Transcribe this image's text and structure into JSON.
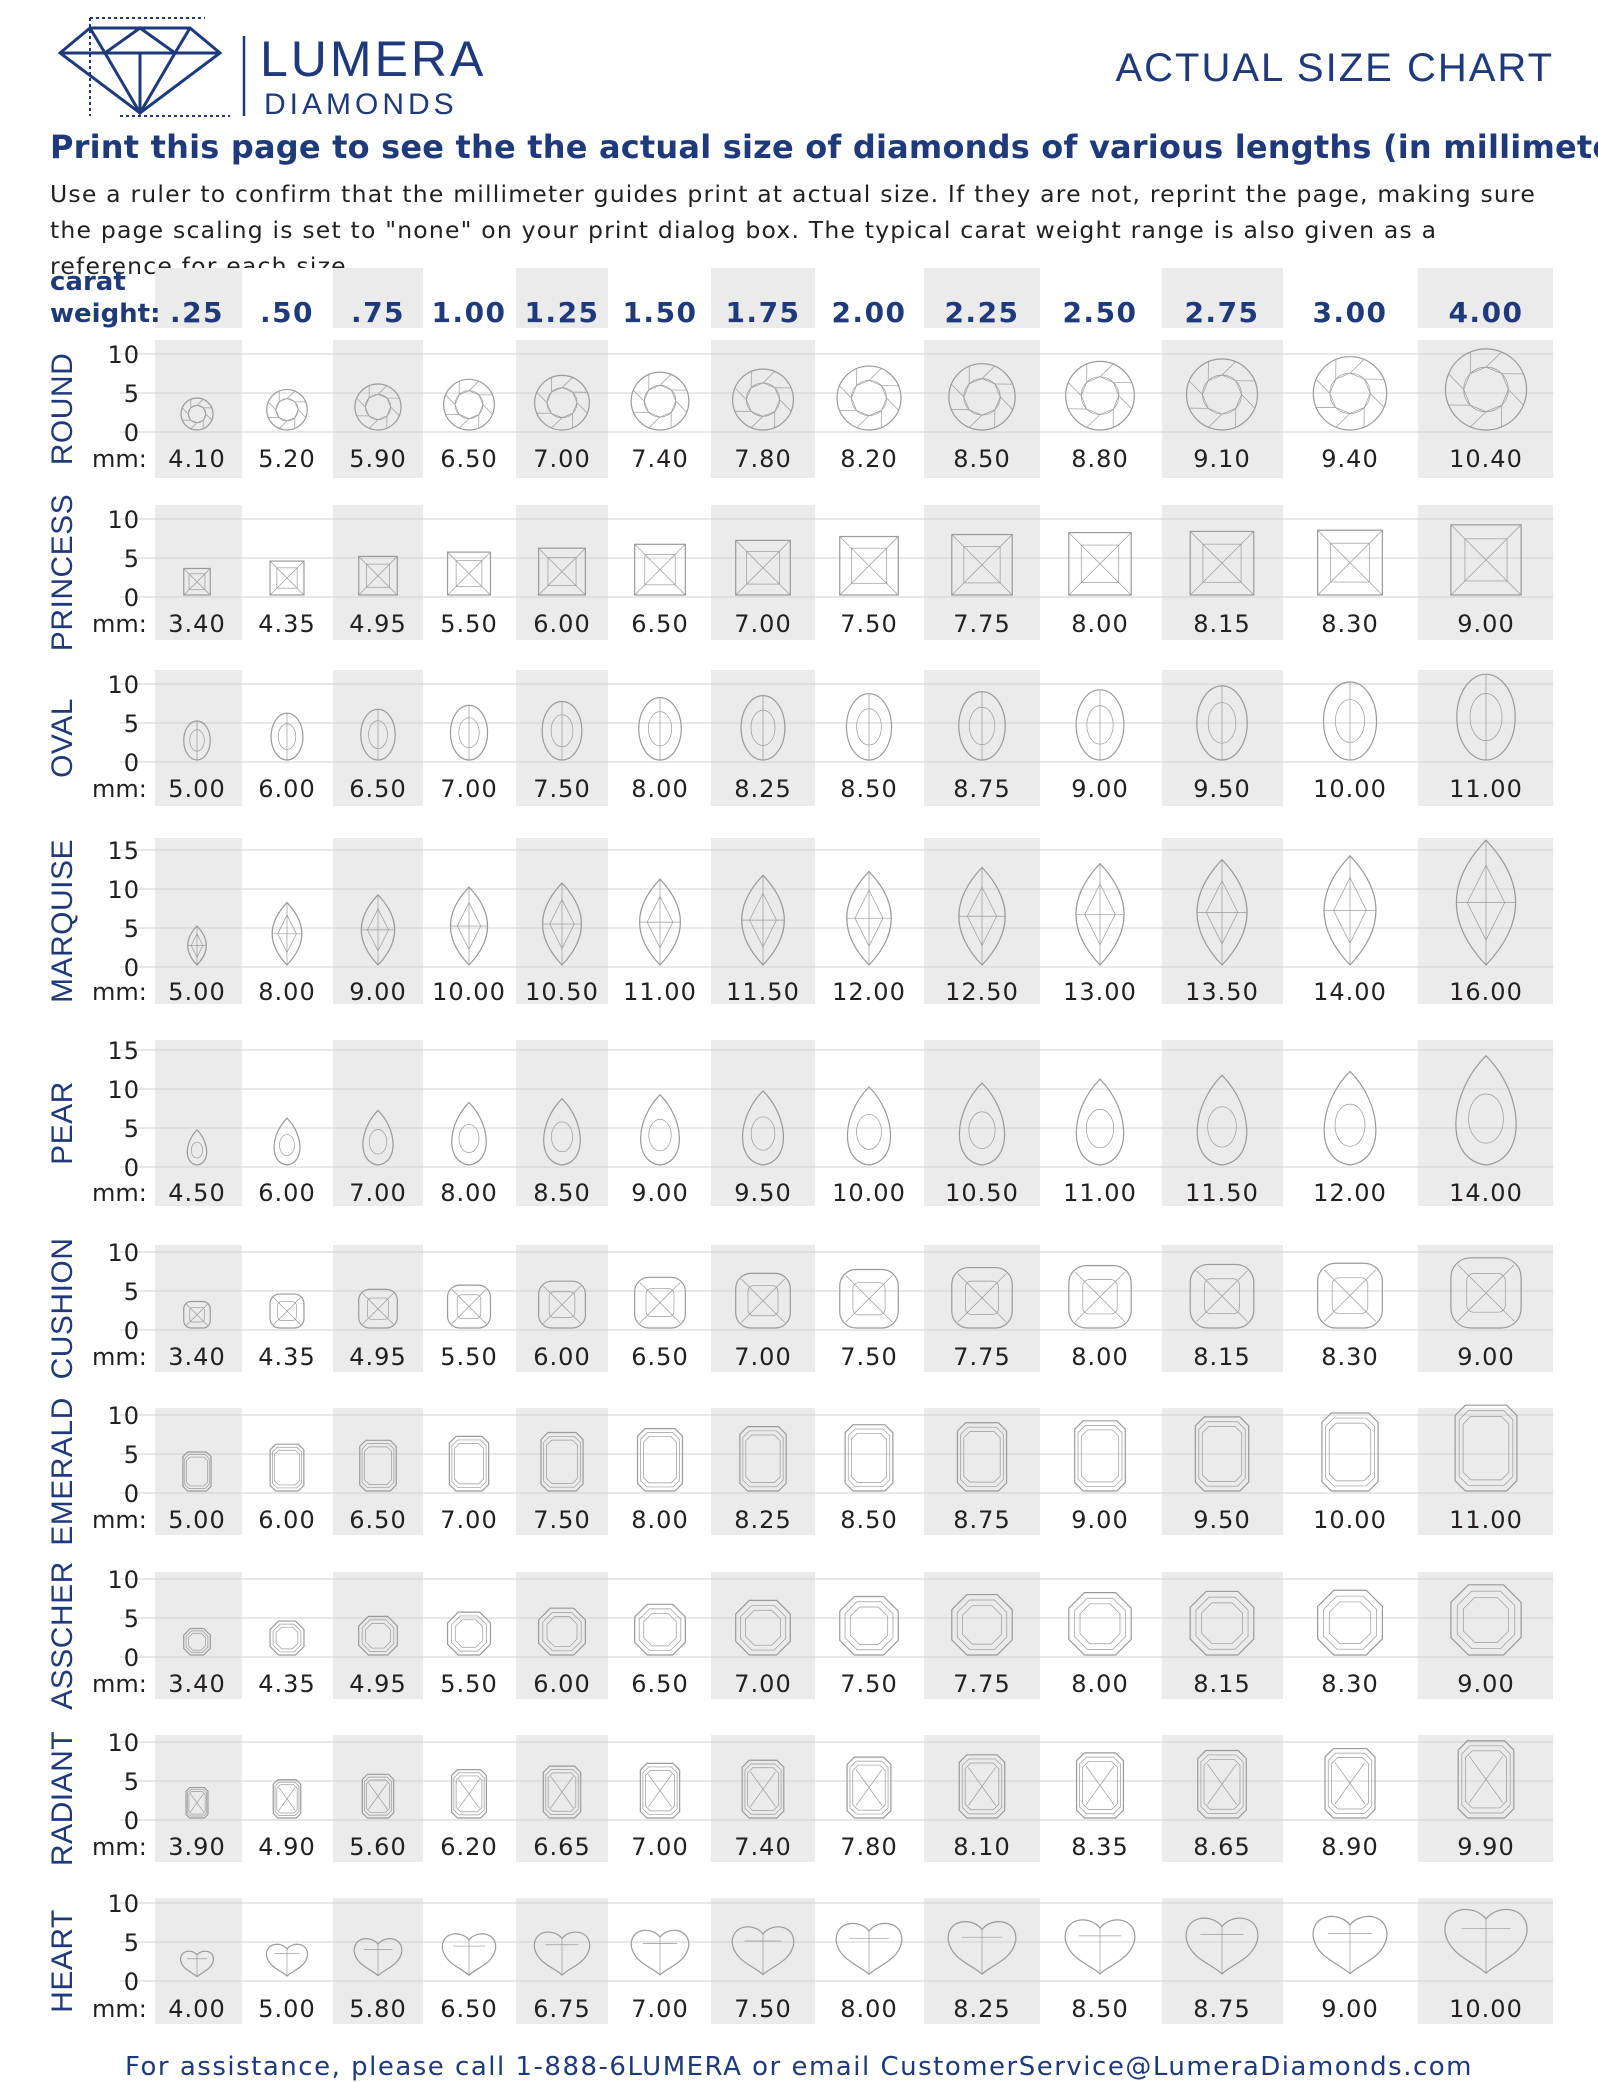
{
  "brand": {
    "name": "LUMERA",
    "sub": "DIAMONDS"
  },
  "chart_title": "ACTUAL SIZE CHART",
  "headline": "Print this page to see the the actual size of diamonds of various lengths (in millimeters).",
  "instructions": "Use a ruler to confirm that the millimeter guides print at actual size.  If they are not, reprint the page, making sure the page scaling is set to \"none\" on your print dialog box.  The typical carat weight range is also given as a reference for each size.",
  "footer": "For assistance, please call 1-888-6LUMERA or email CustomerService@LumeraDiamonds.com",
  "colors": {
    "brand_blue": "#1e3a7b",
    "band_gray": "#ebebeb",
    "grid_line": "#d0d0d0",
    "outline": "#9a9a9a"
  },
  "chart_data": {
    "type": "table",
    "carat_label_1": "carat",
    "carat_label_2": "weight:",
    "mm_label": "mm:",
    "carat_weights": [
      ".25",
      ".50",
      ".75",
      "1.00",
      "1.25",
      "1.50",
      "1.75",
      "2.00",
      "2.25",
      "2.50",
      "2.75",
      "3.00",
      "4.00"
    ],
    "shapes": [
      {
        "name": "ROUND",
        "scale": [
          "10",
          "5",
          "0"
        ],
        "mm": [
          "4.10",
          "5.20",
          "5.90",
          "6.50",
          "7.00",
          "7.40",
          "7.80",
          "8.20",
          "8.50",
          "8.80",
          "9.10",
          "9.40",
          "10.40"
        ]
      },
      {
        "name": "PRINCESS",
        "scale": [
          "10",
          "5",
          "0"
        ],
        "mm": [
          "3.40",
          "4.35",
          "4.95",
          "5.50",
          "6.00",
          "6.50",
          "7.00",
          "7.50",
          "7.75",
          "8.00",
          "8.15",
          "8.30",
          "9.00"
        ]
      },
      {
        "name": "OVAL",
        "scale": [
          "10",
          "5",
          "0"
        ],
        "mm": [
          "5.00",
          "6.00",
          "6.50",
          "7.00",
          "7.50",
          "8.00",
          "8.25",
          "8.50",
          "8.75",
          "9.00",
          "9.50",
          "10.00",
          "11.00"
        ]
      },
      {
        "name": "MARQUISE",
        "scale": [
          "15",
          "10",
          "5",
          "0"
        ],
        "mm": [
          "5.00",
          "8.00",
          "9.00",
          "10.00",
          "10.50",
          "11.00",
          "11.50",
          "12.00",
          "12.50",
          "13.00",
          "13.50",
          "14.00",
          "16.00"
        ]
      },
      {
        "name": "PEAR",
        "scale": [
          "15",
          "10",
          "5",
          "0"
        ],
        "mm": [
          "4.50",
          "6.00",
          "7.00",
          "8.00",
          "8.50",
          "9.00",
          "9.50",
          "10.00",
          "10.50",
          "11.00",
          "11.50",
          "12.00",
          "14.00"
        ]
      },
      {
        "name": "CUSHION",
        "scale": [
          "10",
          "5",
          "0"
        ],
        "mm": [
          "3.40",
          "4.35",
          "4.95",
          "5.50",
          "6.00",
          "6.50",
          "7.00",
          "7.50",
          "7.75",
          "8.00",
          "8.15",
          "8.30",
          "9.00"
        ]
      },
      {
        "name": "EMERALD",
        "scale": [
          "10",
          "5",
          "0"
        ],
        "mm": [
          "5.00",
          "6.00",
          "6.50",
          "7.00",
          "7.50",
          "8.00",
          "8.25",
          "8.50",
          "8.75",
          "9.00",
          "9.50",
          "10.00",
          "11.00"
        ]
      },
      {
        "name": "ASSCHER",
        "scale": [
          "10",
          "5",
          "0"
        ],
        "mm": [
          "3.40",
          "4.35",
          "4.95",
          "5.50",
          "6.00",
          "6.50",
          "7.00",
          "7.50",
          "7.75",
          "8.00",
          "8.15",
          "8.30",
          "9.00"
        ]
      },
      {
        "name": "RADIANT",
        "scale": [
          "10",
          "5",
          "0"
        ],
        "mm": [
          "3.90",
          "4.90",
          "5.60",
          "6.20",
          "6.65",
          "7.00",
          "7.40",
          "7.80",
          "8.10",
          "8.35",
          "8.65",
          "8.90",
          "9.90"
        ]
      },
      {
        "name": "HEART",
        "scale": [
          "10",
          "5",
          "0"
        ],
        "mm": [
          "4.00",
          "5.00",
          "5.80",
          "6.50",
          "6.75",
          "7.00",
          "7.50",
          "8.00",
          "8.25",
          "8.50",
          "8.75",
          "9.00",
          "10.00"
        ]
      }
    ]
  }
}
